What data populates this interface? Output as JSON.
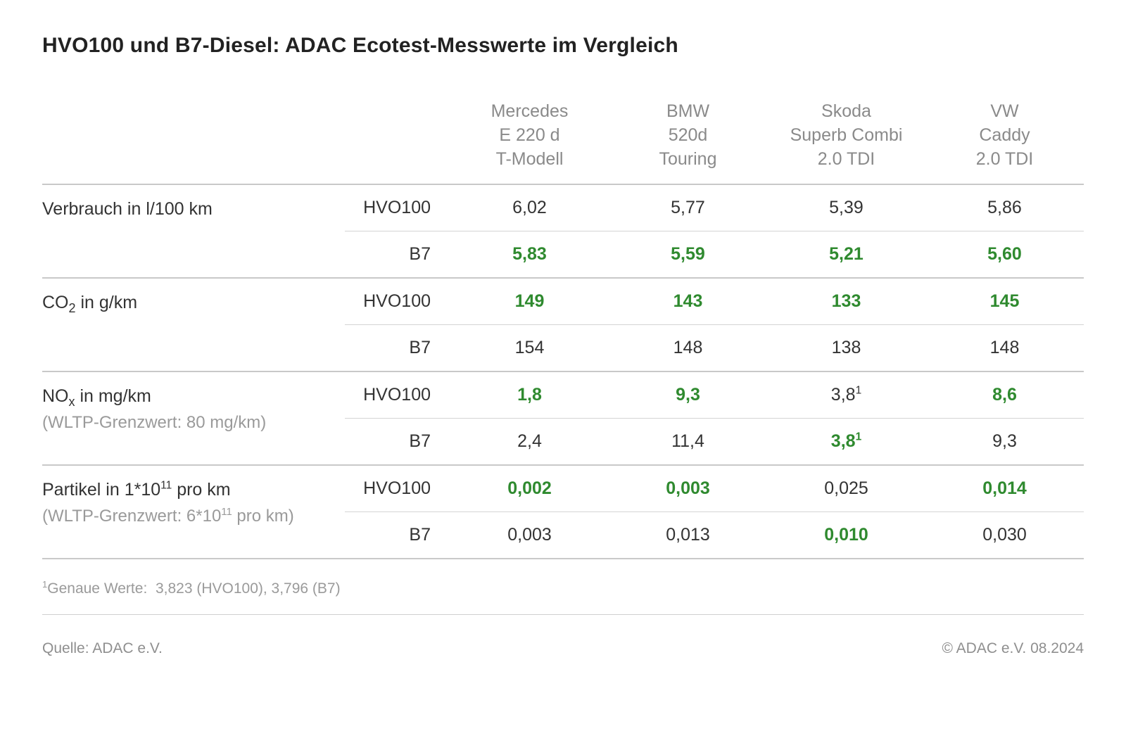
{
  "title": "HVO100 und B7-Diesel: ADAC Ecotest-Messwerte im Vergleich",
  "vehicles": [
    {
      "line1": "Mercedes",
      "line2": "E 220 d",
      "line3": "T-Modell"
    },
    {
      "line1": "BMW",
      "line2": "520d",
      "line3": "Touring"
    },
    {
      "line1": "Skoda",
      "line2": "Superb Combi",
      "line3": "2.0 TDI"
    },
    {
      "line1": "VW",
      "line2": "Caddy",
      "line3": "2.0 TDI"
    }
  ],
  "fuel_labels": {
    "hvo": "HVO100",
    "b7": "B7"
  },
  "metrics": {
    "verbrauch": {
      "label_html": "Verbrauch in l/100 km",
      "sublabel_html": "",
      "hvo": [
        {
          "text": "6,02",
          "green": false
        },
        {
          "text": "5,77",
          "green": false
        },
        {
          "text": "5,39",
          "green": false
        },
        {
          "text": "5,86",
          "green": false
        }
      ],
      "b7": [
        {
          "text": "5,83",
          "green": true
        },
        {
          "text": "5,59",
          "green": true
        },
        {
          "text": "5,21",
          "green": true
        },
        {
          "text": "5,60",
          "green": true
        }
      ]
    },
    "co2": {
      "label_html": "CO<sub>2</sub> in g/km",
      "sublabel_html": "",
      "hvo": [
        {
          "text": "149",
          "green": true
        },
        {
          "text": "143",
          "green": true
        },
        {
          "text": "133",
          "green": true
        },
        {
          "text": "145",
          "green": true
        }
      ],
      "b7": [
        {
          "text": "154",
          "green": false
        },
        {
          "text": "148",
          "green": false
        },
        {
          "text": "138",
          "green": false
        },
        {
          "text": "148",
          "green": false
        }
      ]
    },
    "nox": {
      "label_html": "NO<sub>x</sub> in mg/km",
      "sublabel_html": "(WLTP-Grenzwert: 80 mg/km)",
      "hvo": [
        {
          "text": "1,8",
          "green": true
        },
        {
          "text": "9,3",
          "green": true
        },
        {
          "text": "3,8",
          "green": false,
          "sup": "1"
        },
        {
          "text": "8,6",
          "green": true
        }
      ],
      "b7": [
        {
          "text": "2,4",
          "green": false
        },
        {
          "text": "11,4",
          "green": false
        },
        {
          "text": "3,8",
          "green": true,
          "sup": "1"
        },
        {
          "text": "9,3",
          "green": false
        }
      ]
    },
    "partikel": {
      "label_html": "Partikel in 1*10<sup>11</sup> pro km",
      "sublabel_html": "(WLTP-Grenzwert: 6*10<sup>11</sup> pro km)",
      "hvo": [
        {
          "text": "0,002",
          "green": true
        },
        {
          "text": "0,003",
          "green": true
        },
        {
          "text": "0,025",
          "green": false
        },
        {
          "text": "0,014",
          "green": true
        }
      ],
      "b7": [
        {
          "text": "0,003",
          "green": false
        },
        {
          "text": "0,013",
          "green": false
        },
        {
          "text": "0,010",
          "green": true
        },
        {
          "text": "0,030",
          "green": false
        }
      ]
    }
  },
  "footnote_html": "<sup>1</sup>Genaue Werte:&nbsp; 3,823 (HVO100), 3,796 (B7)",
  "source_label": "Quelle: ADAC e.V.",
  "copyright": "© ADAC e.V. 08.2024",
  "style": {
    "title_fontsize": 30,
    "cell_fontsize": 25,
    "header_color": "#8a8a8a",
    "text_color": "#333333",
    "green_color": "#2f8a2f",
    "rule_color": "#c9c9c9",
    "subrule_color": "#d4d4d4",
    "background": "#ffffff"
  }
}
